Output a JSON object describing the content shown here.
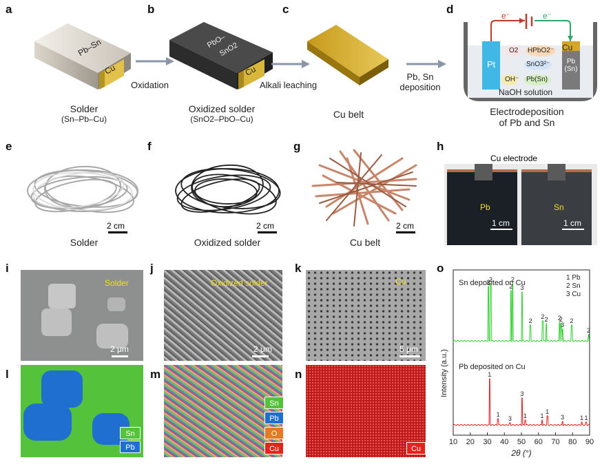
{
  "panel_letters": {
    "a": "a",
    "b": "b",
    "c": "c",
    "d": "d",
    "e": "e",
    "f": "f",
    "g": "g",
    "h": "h",
    "i": "i",
    "j": "j",
    "k": "k",
    "l": "l",
    "m": "m",
    "n": "n",
    "o": "o"
  },
  "top": {
    "a_block_label": "Pb–Sn",
    "a_cu_label": "Cu",
    "a_caption": "Solder",
    "a_sub": "(Sn–Pb–Cu)",
    "b_block_label_1": "PbO–",
    "b_block_label_2": "SnO2",
    "b_cu_label": "Cu",
    "b_caption": "Oxidized solder",
    "b_sub": "(SnO2–PbO–Cu)",
    "c_caption": "Cu belt",
    "arrow1": "Oxidation",
    "arrow2": "Alkali leaching",
    "arrow3a": "Pb, Sn",
    "arrow3b": "deposition"
  },
  "cell": {
    "e_left": "e⁻",
    "e_right": "e⁻",
    "pt": "Pt",
    "cu": "Cu",
    "pbsn1": "Pb",
    "pbsn2": "(Sn)",
    "o2": "O2",
    "hpbo2": "HPbO2⁻",
    "sno3": "SnO3²⁻",
    "oh": "OH⁻",
    "pbsn": "Pb(Sn)",
    "solution": "NaOH solution",
    "caption1": "Electrodeposition",
    "caption2": "of Pb and Sn"
  },
  "photos": {
    "e_caption": "Solder",
    "f_caption": "Oxidized solder",
    "g_caption": "Cu belt",
    "e_scale": "2 cm",
    "f_scale": "2 cm",
    "g_scale": "2 cm",
    "h_electrode": "Cu electrode",
    "h_pb": "Pb",
    "h_sn": "Sn",
    "h_scale1": "1 cm",
    "h_scale2": "1 cm"
  },
  "sem": {
    "i_label": "Solder",
    "j_label": "Oxidized solder",
    "k_label": "Cu",
    "i_scale": "2 μm",
    "j_scale": "2 μm",
    "k_scale": "5 μm",
    "l_legend": [
      "Sn",
      "Pb"
    ],
    "m_legend": [
      "Sn",
      "Pb",
      "O",
      "Cu"
    ],
    "n_legend": [
      "Cu"
    ]
  },
  "colors": {
    "sn": "#54c23a",
    "pb": "#1e6fd0",
    "o": "#e47b22",
    "cu": "#e5231d",
    "xrd_sn": "#2ecf2e",
    "xrd_pb": "#e02020",
    "arrow": "#8a95a6"
  },
  "chart_data": {
    "type": "line",
    "xlabel": "2θ (°)",
    "ylabel": "Intensity (a.u.)",
    "xlim": [
      10,
      90
    ],
    "x_ticks": [
      10,
      20,
      30,
      40,
      50,
      60,
      70,
      80,
      90
    ],
    "legend_lines": [
      "1 Pb",
      "2 Sn",
      "3 Cu"
    ],
    "series": [
      {
        "name": "Sn deposited on Cu",
        "peaks": [
          [
            30.6,
            "2"
          ],
          [
            32.0,
            "2"
          ],
          [
            43.9,
            "2"
          ],
          [
            44.9,
            "2"
          ],
          [
            50.4,
            "3"
          ],
          [
            55.3,
            "2"
          ],
          [
            62.5,
            "2"
          ],
          [
            64.6,
            "2"
          ],
          [
            72.4,
            "2"
          ],
          [
            73.2,
            "2"
          ],
          [
            74.1,
            "3"
          ],
          [
            79.5,
            "2"
          ],
          [
            89.4,
            "2"
          ]
        ]
      },
      {
        "name": "Pb deposited on Cu",
        "peaks": [
          [
            31.3,
            "1"
          ],
          [
            36.3,
            "1"
          ],
          [
            43.3,
            "3"
          ],
          [
            50.4,
            "3"
          ],
          [
            52.2,
            "1"
          ],
          [
            62.1,
            "1"
          ],
          [
            65.2,
            "1"
          ],
          [
            74.1,
            "3"
          ],
          [
            85.4,
            "1"
          ],
          [
            88.0,
            "1"
          ]
        ]
      }
    ]
  }
}
